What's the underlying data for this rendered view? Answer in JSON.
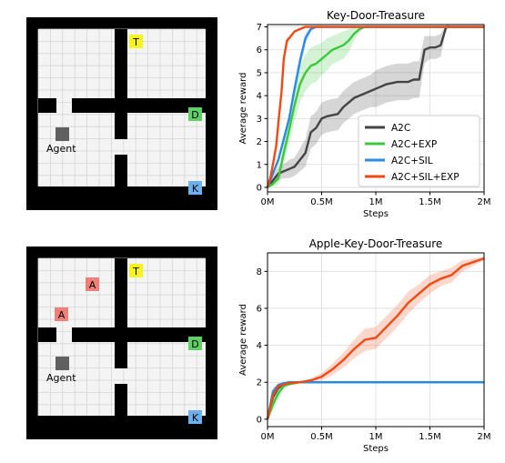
{
  "colors": {
    "wall": "#000000",
    "floor": "#f4f4f4",
    "grid": "#d6d6d6",
    "treasure": "#f7f31f",
    "door": "#5fcf68",
    "key": "#6cb0f0",
    "apple": "#f07f78",
    "agent": "#606060",
    "A2C": "#444444",
    "A2C+EXP": "#3cc83c",
    "A2C+SIL": "#2a8ae6",
    "A2C+SIL+EXP": "#f04a14"
  },
  "maze_top": {
    "tiles": [
      {
        "label": "T",
        "kind": "treasure",
        "icon": "treasure-tile"
      },
      {
        "label": "D",
        "kind": "door",
        "icon": "door-tile"
      },
      {
        "label": "K",
        "kind": "key",
        "icon": "key-tile"
      }
    ],
    "agent_label": "Agent"
  },
  "maze_bottom": {
    "tiles": [
      {
        "label": "T",
        "kind": "treasure",
        "icon": "treasure-tile"
      },
      {
        "label": "A",
        "kind": "apple",
        "icon": "apple-tile"
      },
      {
        "label": "A",
        "kind": "apple",
        "icon": "apple-tile"
      },
      {
        "label": "D",
        "kind": "door",
        "icon": "door-tile"
      },
      {
        "label": "K",
        "kind": "key",
        "icon": "key-tile"
      }
    ],
    "agent_label": "Agent"
  },
  "chart_data": [
    {
      "type": "line",
      "title": "Key-Door-Treasure",
      "xlabel": "Steps",
      "ylabel": "Average reward",
      "xlim": [
        0,
        2
      ],
      "ylim": [
        -0.2,
        7.1
      ],
      "xticks": [
        0,
        0.5,
        1,
        1.5,
        2
      ],
      "xtick_labels": [
        "0M",
        "0.5M",
        "1M",
        "1.5M",
        "2M"
      ],
      "yticks": [
        0,
        1,
        2,
        3,
        4,
        5,
        6,
        7
      ],
      "ytick_labels": [
        "0",
        "1",
        "2",
        "3",
        "4",
        "5",
        "6",
        "7"
      ],
      "grid": true,
      "legend": "lower-right",
      "series": [
        {
          "name": "A2C",
          "x": [
            0,
            0.05,
            0.1,
            0.15,
            0.2,
            0.25,
            0.3,
            0.35,
            0.4,
            0.45,
            0.5,
            0.55,
            0.6,
            0.65,
            0.7,
            0.75,
            0.8,
            0.85,
            0.9,
            0.95,
            1.0,
            1.05,
            1.1,
            1.15,
            1.2,
            1.25,
            1.3,
            1.35,
            1.4,
            1.45,
            1.5,
            1.55,
            1.6,
            1.65,
            1.7,
            1.8,
            2.0
          ],
          "y": [
            0,
            0.3,
            0.6,
            0.7,
            0.8,
            0.9,
            1.2,
            1.5,
            2.4,
            2.6,
            3.0,
            3.1,
            3.15,
            3.2,
            3.5,
            3.7,
            3.9,
            4.0,
            4.1,
            4.2,
            4.3,
            4.4,
            4.5,
            4.55,
            4.6,
            4.6,
            4.6,
            4.7,
            4.7,
            6.0,
            6.1,
            6.1,
            6.2,
            7.0,
            7.0,
            7.0,
            7.0
          ],
          "band": [
            0,
            0.2,
            0.3,
            0.3,
            0.4,
            0.4,
            0.5,
            0.6,
            0.7,
            0.7,
            0.7,
            0.7,
            0.7,
            0.7,
            0.7,
            0.7,
            0.7,
            0.7,
            0.7,
            0.7,
            0.8,
            0.8,
            0.8,
            0.8,
            0.8,
            0.8,
            0.8,
            0.8,
            0.8,
            0.6,
            0.5,
            0.5,
            0.5,
            0.1,
            0.05,
            0,
            0
          ]
        },
        {
          "name": "A2C+EXP",
          "x": [
            0,
            0.05,
            0.1,
            0.15,
            0.2,
            0.25,
            0.3,
            0.35,
            0.4,
            0.45,
            0.5,
            0.55,
            0.6,
            0.65,
            0.7,
            0.75,
            0.8,
            0.85,
            0.9,
            1.0,
            1.5,
            2.0
          ],
          "y": [
            0,
            0.15,
            0.4,
            1.5,
            2.5,
            3.6,
            4.5,
            5.0,
            5.3,
            5.4,
            5.6,
            5.8,
            6.0,
            6.1,
            6.2,
            6.4,
            6.7,
            6.9,
            7.0,
            7.0,
            7.0,
            7.0
          ],
          "band": [
            0,
            0.1,
            0.3,
            0.5,
            0.6,
            0.7,
            0.8,
            0.8,
            0.8,
            0.8,
            0.7,
            0.7,
            0.6,
            0.6,
            0.6,
            0.5,
            0.3,
            0.1,
            0,
            0,
            0,
            0
          ]
        },
        {
          "name": "A2C+SIL",
          "x": [
            0,
            0.05,
            0.1,
            0.15,
            0.2,
            0.25,
            0.3,
            0.35,
            0.4,
            0.45,
            0.5,
            1.0,
            1.5,
            2.0
          ],
          "y": [
            0,
            0.6,
            1.2,
            2.1,
            3.0,
            4.3,
            5.5,
            6.5,
            6.9,
            7.0,
            7.0,
            7.0,
            7.0,
            7.0
          ],
          "band": [
            0,
            0.1,
            0.15,
            0.2,
            0.25,
            0.3,
            0.3,
            0.25,
            0.1,
            0,
            0,
            0,
            0,
            0
          ]
        },
        {
          "name": "A2C+SIL+EXP",
          "x": [
            0,
            0.03,
            0.05,
            0.08,
            0.1,
            0.13,
            0.15,
            0.18,
            0.2,
            0.25,
            0.3,
            0.35,
            0.4,
            0.5,
            1.0,
            1.5,
            2.0
          ],
          "y": [
            0,
            0.5,
            1.0,
            1.8,
            2.8,
            4.2,
            5.6,
            6.4,
            6.5,
            6.8,
            6.9,
            7.0,
            7.0,
            7.0,
            7.0,
            7.0,
            7.0
          ],
          "band": [
            0,
            0.1,
            0.15,
            0.2,
            0.25,
            0.25,
            0.2,
            0.15,
            0.1,
            0.05,
            0.05,
            0,
            0,
            0,
            0,
            0,
            0
          ]
        }
      ]
    },
    {
      "type": "line",
      "title": "Apple-Key-Door-Treasure",
      "xlabel": "Steps",
      "ylabel": "Average reward",
      "xlim": [
        0,
        2
      ],
      "ylim": [
        -0.4,
        9.0
      ],
      "xticks": [
        0,
        0.5,
        1,
        1.5,
        2
      ],
      "xtick_labels": [
        "0M",
        "0.5M",
        "1M",
        "1.5M",
        "2M"
      ],
      "yticks": [
        0,
        2,
        4,
        6,
        8
      ],
      "ytick_labels": [
        "0",
        "2",
        "4",
        "6",
        "8"
      ],
      "grid": true,
      "legend": "none",
      "series": [
        {
          "name": "A2C",
          "x": [
            0,
            0.05,
            0.1,
            0.15,
            0.2,
            0.3,
            0.5,
            1.0,
            1.5,
            2.0
          ],
          "y": [
            0,
            1.2,
            1.7,
            1.9,
            1.95,
            2.0,
            2.0,
            2.0,
            2.0,
            2.0
          ],
          "band": [
            0,
            0.3,
            0.2,
            0.1,
            0.05,
            0,
            0,
            0,
            0,
            0
          ]
        },
        {
          "name": "A2C+EXP",
          "x": [
            0,
            0.05,
            0.1,
            0.15,
            0.2,
            0.3,
            0.5,
            1.0,
            1.5,
            2.0
          ],
          "y": [
            0,
            0.8,
            1.4,
            1.8,
            1.9,
            2.0,
            2.0,
            2.0,
            2.0,
            2.0
          ],
          "band": [
            0,
            0.3,
            0.3,
            0.2,
            0.1,
            0,
            0,
            0,
            0,
            0
          ]
        },
        {
          "name": "A2C+SIL",
          "x": [
            0,
            0.05,
            0.1,
            0.15,
            0.2,
            0.3,
            0.5,
            1.0,
            1.5,
            2.0
          ],
          "y": [
            0,
            1.5,
            1.85,
            1.95,
            2.0,
            2.0,
            2.0,
            2.0,
            2.0,
            2.0
          ],
          "band": [
            0,
            0.2,
            0.1,
            0.05,
            0,
            0,
            0,
            0,
            0,
            0
          ]
        },
        {
          "name": "A2C+SIL+EXP",
          "x": [
            0,
            0.05,
            0.1,
            0.2,
            0.3,
            0.4,
            0.5,
            0.6,
            0.7,
            0.8,
            0.9,
            1.0,
            1.1,
            1.2,
            1.3,
            1.4,
            1.5,
            1.6,
            1.7,
            1.8,
            1.9,
            2.0
          ],
          "y": [
            0,
            1.3,
            1.8,
            1.95,
            2.0,
            2.1,
            2.3,
            2.7,
            3.2,
            3.8,
            4.3,
            4.4,
            5.0,
            5.6,
            6.3,
            6.8,
            7.3,
            7.6,
            7.8,
            8.3,
            8.5,
            8.7
          ],
          "band": [
            0,
            0.2,
            0.1,
            0.05,
            0.05,
            0.1,
            0.2,
            0.3,
            0.4,
            0.5,
            0.6,
            0.6,
            0.6,
            0.6,
            0.6,
            0.5,
            0.5,
            0.4,
            0.4,
            0.3,
            0.2,
            0.1
          ]
        }
      ]
    }
  ]
}
